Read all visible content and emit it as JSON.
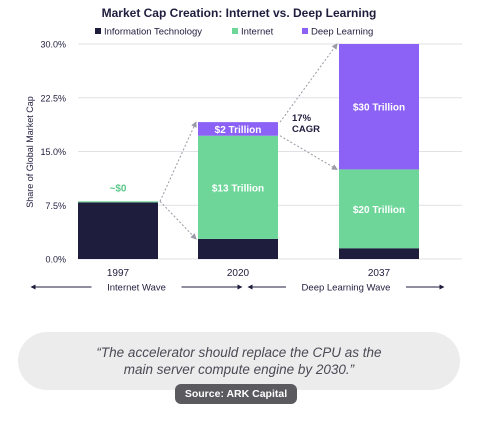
{
  "chart_data": {
    "type": "bar",
    "title": "Market Cap Creation: Internet vs. Deep Learning",
    "ylabel": "Share of Global Market Cap",
    "xlabel": "",
    "ylim": [
      0,
      30
    ],
    "yticks": [
      "0.0%",
      "7.5%",
      "15.0%",
      "22.5%",
      "30.0%"
    ],
    "ytick_values": [
      0,
      7.5,
      15,
      22.5,
      30
    ],
    "categories": [
      "1997",
      "2020",
      "2037"
    ],
    "series": [
      {
        "name": "Information Technology",
        "color": "#1f1d3d",
        "values": [
          7.9,
          2.8,
          1.5
        ]
      },
      {
        "name": "Internet",
        "color": "#6fd69a",
        "values": [
          0.15,
          14.4,
          11.0
        ]
      },
      {
        "name": "Deep Learning",
        "color": "#8b62f5",
        "values": [
          0,
          1.9,
          17.5
        ]
      }
    ],
    "data_labels": [
      {
        "category": "1997",
        "series": "Internet",
        "text": "~$0"
      },
      {
        "category": "2020",
        "series": "Deep Learning",
        "text": "$2 Trillion"
      },
      {
        "category": "2020",
        "series": "Internet",
        "text": "$13 Trillion"
      },
      {
        "category": "2037",
        "series": "Deep Learning",
        "text": "$30 Trillion"
      },
      {
        "category": "2037",
        "series": "Internet",
        "text": "$20 Trillion"
      }
    ],
    "annotation": {
      "line1": "17%",
      "line2": "CAGR"
    },
    "eras": [
      {
        "label": "Internet Wave"
      },
      {
        "label": "Deep Learning Wave"
      }
    ],
    "legend": "top",
    "grid": true
  },
  "quote": {
    "text": "“The accelerator should replace the CPU as the main server compute engine by 2030.”",
    "source": "Source: ARK Capital"
  }
}
